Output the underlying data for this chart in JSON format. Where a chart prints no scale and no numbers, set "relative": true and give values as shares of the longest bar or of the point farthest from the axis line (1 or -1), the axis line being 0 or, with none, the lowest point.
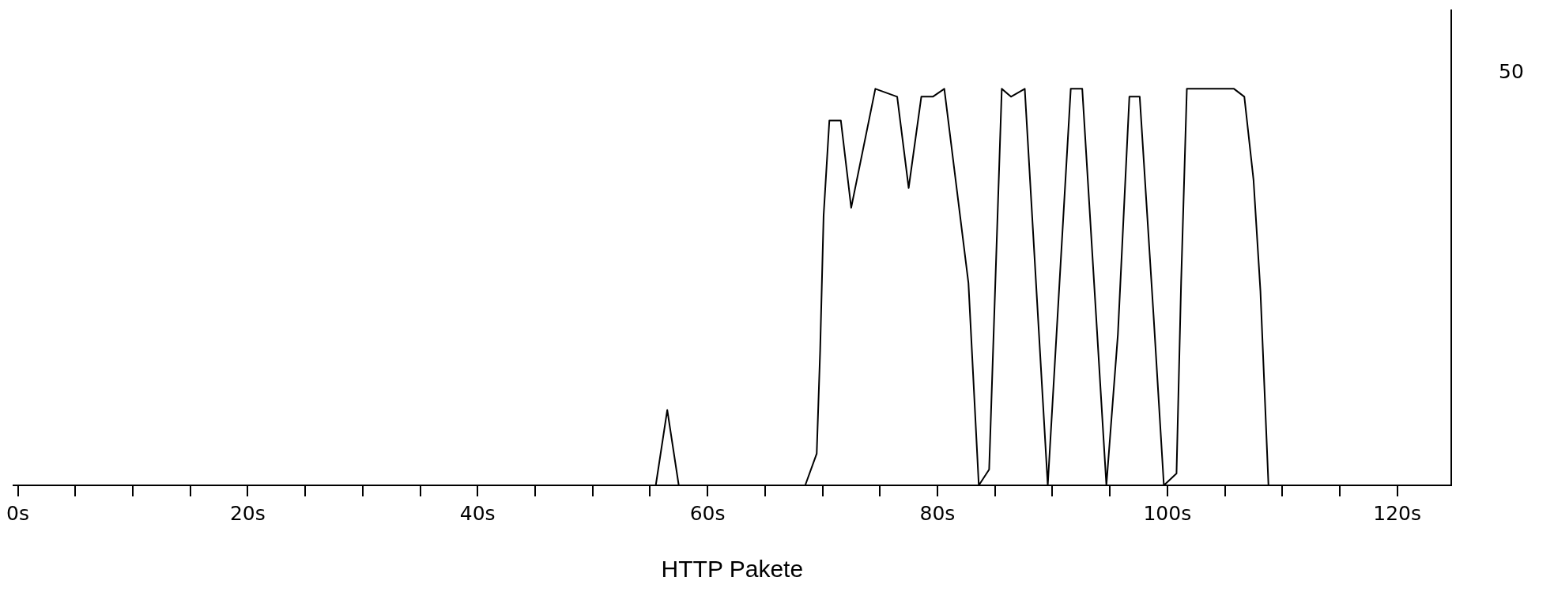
{
  "chart_data": {
    "type": "line",
    "xlabel": "HTTP Pakete",
    "x": [
      0.2,
      55.5,
      56.5,
      57.5,
      68.5,
      69.5,
      69.8,
      70.1,
      70.6,
      71.6,
      72.5,
      74.6,
      76.5,
      77.5,
      78.6,
      79.6,
      80.6,
      82.7,
      83.6,
      84.5,
      85.6,
      86.4,
      87.6,
      89.6,
      91.6,
      92.6,
      93.8,
      94.7,
      95.7,
      96.7,
      97.6,
      98.8,
      99.7,
      100.8,
      101.2,
      101.7,
      102.8,
      103.6,
      105.1,
      105.8,
      106.7,
      107.5,
      108.1,
      108.8,
      124.0
    ],
    "series": [
      {
        "color": "#000000",
        "values": [
          0,
          0,
          0.19,
          0,
          0,
          0.08,
          0.34,
          0.68,
          0.92,
          0.92,
          0.7,
          1,
          0.98,
          0.75,
          0.98,
          0.98,
          1,
          0.51,
          0,
          0.04,
          1,
          0.98,
          1,
          0,
          1,
          1,
          0.43,
          0,
          0.38,
          0.98,
          0.98,
          0.43,
          0,
          0.03,
          0.51,
          1,
          1,
          1,
          1,
          1,
          0.98,
          0.77,
          0.49,
          0,
          0
        ]
      }
    ],
    "relative": true,
    "annotations": [
      "50"
    ],
    "xlim": [
      -0.4,
      124.7
    ],
    "xticks": [
      {
        "value": 0,
        "label": "0s"
      },
      {
        "value": 5,
        "label": null
      },
      {
        "value": 10,
        "label": null
      },
      {
        "value": 15,
        "label": null
      },
      {
        "value": 20,
        "label": "20s"
      },
      {
        "value": 25,
        "label": null
      },
      {
        "value": 30,
        "label": null
      },
      {
        "value": 35,
        "label": null
      },
      {
        "value": 40,
        "label": "40s"
      },
      {
        "value": 45,
        "label": null
      },
      {
        "value": 50,
        "label": null
      },
      {
        "value": 55,
        "label": null
      },
      {
        "value": 60,
        "label": "60s"
      },
      {
        "value": 65,
        "label": null
      },
      {
        "value": 70,
        "label": null
      },
      {
        "value": 75,
        "label": null
      },
      {
        "value": 80,
        "label": "80s"
      },
      {
        "value": 85,
        "label": null
      },
      {
        "value": 90,
        "label": null
      },
      {
        "value": 95,
        "label": null
      },
      {
        "value": 100,
        "label": "100s"
      },
      {
        "value": 105,
        "label": null
      },
      {
        "value": 110,
        "label": null
      },
      {
        "value": 115,
        "label": null
      },
      {
        "value": 120,
        "label": "120s"
      }
    ],
    "grid": false,
    "legend": false,
    "marker": "none",
    "line_style": "solid"
  }
}
